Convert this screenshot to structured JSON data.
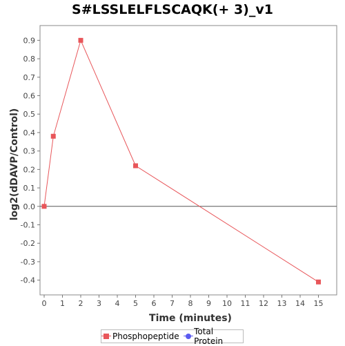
{
  "chart_data": {
    "type": "line",
    "title": "S#LSSLELFLSCAQK(+ 3)_v1",
    "xlabel": "Time (minutes)",
    "ylabel": "log2(dDAVP/Control)",
    "xlim": [
      0,
      16
    ],
    "ylim": [
      -0.48,
      0.98
    ],
    "x_ticks": [
      "0",
      "1",
      "2",
      "3",
      "4",
      "5",
      "6",
      "7",
      "8",
      "9",
      "10",
      "11",
      "12",
      "13",
      "14",
      "15"
    ],
    "y_ticks": [
      "0.9",
      "0.8",
      "0.7",
      "0.6",
      "0.5",
      "0.4",
      "0.3",
      "0.2",
      "0.1",
      "0.0",
      "-0.1",
      "-0.2",
      "-0.3",
      "-0.4"
    ],
    "grid": false,
    "legend_position": "bottom",
    "series": [
      {
        "name": "Phosphopeptide",
        "color": "#e8565a",
        "marker": "square",
        "points": [
          {
            "x": 0,
            "y": 0.0
          },
          {
            "x": 0.5,
            "y": 0.38
          },
          {
            "x": 2,
            "y": 0.9
          },
          {
            "x": 5,
            "y": 0.22
          },
          {
            "x": 15,
            "y": -0.41
          }
        ]
      },
      {
        "name": "Total Protein",
        "color": "#5b5bf0",
        "marker": "circle",
        "points": []
      }
    ],
    "reference_line": {
      "y": 0.0,
      "color": "#555555"
    }
  }
}
